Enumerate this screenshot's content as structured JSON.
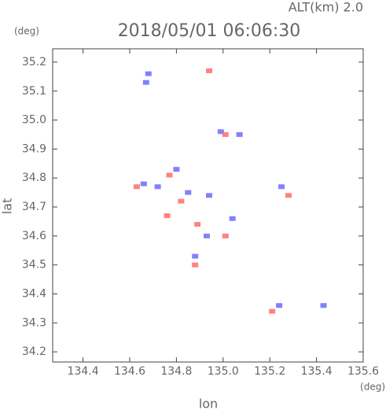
{
  "chart_data": {
    "type": "scatter",
    "title": "2018/05/01 06:06:30",
    "annotation": "ALT(km) 2.0",
    "y_unit": "(deg)",
    "x_unit": "(deg)",
    "xlabel": "lon",
    "ylabel": "lat",
    "xlim": [
      134.27,
      135.6
    ],
    "ylim": [
      34.165,
      35.246
    ],
    "xticks": [
      134.4,
      134.6,
      134.8,
      {
        "value": 135,
        "label": "135.0"
      },
      135.2,
      135.4,
      135.6
    ],
    "yticks": [
      34.2,
      34.3,
      34.4,
      34.5,
      34.6,
      34.7,
      34.8,
      34.9,
      {
        "value": 35,
        "label": "35.0"
      },
      35.1,
      35.2
    ],
    "series": [
      {
        "color": "#6b6bff",
        "x": [
          134.68,
          134.67,
          134.8,
          134.85,
          134.94,
          135.04,
          134.93,
          134.88,
          134.66,
          134.72,
          135.43,
          135.07,
          134.99,
          135.25,
          135.24
        ],
        "y": [
          35.16,
          35.13,
          34.83,
          34.75,
          34.74,
          34.66,
          34.6,
          34.53,
          34.78,
          34.77,
          34.36,
          34.95,
          34.96,
          34.77,
          34.36
        ]
      },
      {
        "color": "#ff6b6b",
        "x": [
          134.63,
          134.77,
          134.82,
          134.89,
          134.88,
          135.01,
          135.21,
          135.28,
          135.01,
          134.94,
          134.76
        ],
        "y": [
          34.77,
          34.81,
          34.72,
          34.64,
          34.5,
          34.6,
          34.34,
          34.74,
          34.95,
          35.17,
          34.67
        ]
      }
    ]
  }
}
